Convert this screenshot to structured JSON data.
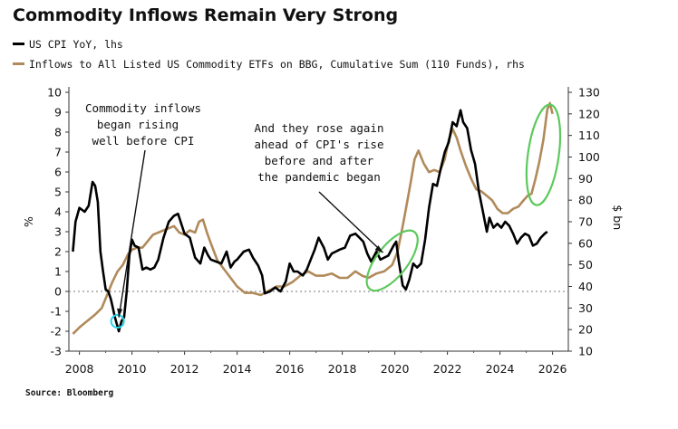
{
  "chart_data": {
    "type": "line",
    "title": "Commodity Inflows Remain Very Strong",
    "legend": [
      "US CPI YoY, lhs",
      "Inflows to All Listed US Commodity ETFs on BBG, Cumulative Sum (110 Funds), rhs"
    ],
    "xlim": [
      2007.6,
      2026.6
    ],
    "ylim_left": [
      -3,
      10
    ],
    "ylim_right": [
      10,
      130
    ],
    "x_ticks": [
      "2008",
      "2010",
      "2012",
      "2014",
      "2016",
      "2018",
      "2020",
      "2022",
      "2024",
      "2026"
    ],
    "y_left_ticks": [
      "-3",
      "-2",
      "-1",
      "0",
      "1",
      "2",
      "3",
      "4",
      "5",
      "6",
      "7",
      "8",
      "9",
      "10"
    ],
    "y_right_ticks": [
      "10",
      "20",
      "30",
      "40",
      "50",
      "60",
      "70",
      "80",
      "90",
      "100",
      "110",
      "120",
      "130"
    ],
    "ylabel_left": "%",
    "ylabel_right": "$ bn",
    "series": [
      {
        "name": "US CPI YoY, lhs",
        "axis": "left",
        "color": "#000000",
        "points": [
          [
            2007.75,
            2.0
          ],
          [
            2007.85,
            3.5
          ],
          [
            2008.0,
            4.2
          ],
          [
            2008.2,
            4.0
          ],
          [
            2008.35,
            4.3
          ],
          [
            2008.5,
            5.5
          ],
          [
            2008.6,
            5.3
          ],
          [
            2008.7,
            4.5
          ],
          [
            2008.8,
            2.0
          ],
          [
            2008.9,
            1.0
          ],
          [
            2009.0,
            0.1
          ],
          [
            2009.1,
            0.0
          ],
          [
            2009.2,
            -0.4
          ],
          [
            2009.35,
            -1.3
          ],
          [
            2009.5,
            -2.0
          ],
          [
            2009.6,
            -1.5
          ],
          [
            2009.7,
            -1.3
          ],
          [
            2009.8,
            0.0
          ],
          [
            2009.9,
            1.8
          ],
          [
            2010.0,
            2.6
          ],
          [
            2010.1,
            2.3
          ],
          [
            2010.25,
            2.2
          ],
          [
            2010.4,
            1.1
          ],
          [
            2010.55,
            1.2
          ],
          [
            2010.7,
            1.1
          ],
          [
            2010.85,
            1.2
          ],
          [
            2011.0,
            1.6
          ],
          [
            2011.2,
            2.7
          ],
          [
            2011.4,
            3.5
          ],
          [
            2011.6,
            3.8
          ],
          [
            2011.75,
            3.9
          ],
          [
            2011.9,
            3.3
          ],
          [
            2012.0,
            2.9
          ],
          [
            2012.2,
            2.7
          ],
          [
            2012.4,
            1.7
          ],
          [
            2012.6,
            1.4
          ],
          [
            2012.75,
            2.2
          ],
          [
            2012.9,
            1.8
          ],
          [
            2013.0,
            1.6
          ],
          [
            2013.2,
            1.5
          ],
          [
            2013.4,
            1.4
          ],
          [
            2013.6,
            2.0
          ],
          [
            2013.75,
            1.2
          ],
          [
            2013.9,
            1.5
          ],
          [
            2014.0,
            1.6
          ],
          [
            2014.25,
            2.0
          ],
          [
            2014.45,
            2.1
          ],
          [
            2014.6,
            1.7
          ],
          [
            2014.8,
            1.3
          ],
          [
            2014.95,
            0.8
          ],
          [
            2015.05,
            -0.1
          ],
          [
            2015.25,
            0.0
          ],
          [
            2015.45,
            0.2
          ],
          [
            2015.65,
            0.0
          ],
          [
            2015.85,
            0.5
          ],
          [
            2016.0,
            1.4
          ],
          [
            2016.15,
            1.0
          ],
          [
            2016.3,
            1.0
          ],
          [
            2016.5,
            0.8
          ],
          [
            2016.65,
            1.1
          ],
          [
            2016.8,
            1.6
          ],
          [
            2016.95,
            2.1
          ],
          [
            2017.1,
            2.7
          ],
          [
            2017.3,
            2.2
          ],
          [
            2017.45,
            1.6
          ],
          [
            2017.6,
            1.9
          ],
          [
            2017.75,
            2.0
          ],
          [
            2017.9,
            2.1
          ],
          [
            2018.1,
            2.2
          ],
          [
            2018.3,
            2.8
          ],
          [
            2018.5,
            2.9
          ],
          [
            2018.65,
            2.7
          ],
          [
            2018.8,
            2.5
          ],
          [
            2018.95,
            1.9
          ],
          [
            2019.1,
            1.5
          ],
          [
            2019.3,
            2.0
          ],
          [
            2019.45,
            1.6
          ],
          [
            2019.6,
            1.7
          ],
          [
            2019.75,
            1.8
          ],
          [
            2019.95,
            2.3
          ],
          [
            2020.05,
            2.5
          ],
          [
            2020.15,
            1.5
          ],
          [
            2020.3,
            0.3
          ],
          [
            2020.42,
            0.1
          ],
          [
            2020.55,
            0.6
          ],
          [
            2020.7,
            1.4
          ],
          [
            2020.85,
            1.2
          ],
          [
            2021.0,
            1.4
          ],
          [
            2021.15,
            2.6
          ],
          [
            2021.3,
            4.2
          ],
          [
            2021.45,
            5.4
          ],
          [
            2021.6,
            5.3
          ],
          [
            2021.75,
            6.2
          ],
          [
            2021.9,
            7.0
          ],
          [
            2022.05,
            7.5
          ],
          [
            2022.2,
            8.5
          ],
          [
            2022.35,
            8.3
          ],
          [
            2022.5,
            9.1
          ],
          [
            2022.6,
            8.5
          ],
          [
            2022.75,
            8.2
          ],
          [
            2022.9,
            7.1
          ],
          [
            2023.05,
            6.4
          ],
          [
            2023.2,
            5.0
          ],
          [
            2023.35,
            4.0
          ],
          [
            2023.5,
            3.0
          ],
          [
            2023.6,
            3.7
          ],
          [
            2023.75,
            3.2
          ],
          [
            2023.9,
            3.4
          ],
          [
            2024.05,
            3.2
          ],
          [
            2024.2,
            3.5
          ],
          [
            2024.35,
            3.3
          ],
          [
            2024.5,
            2.9
          ],
          [
            2024.65,
            2.4
          ],
          [
            2024.8,
            2.7
          ],
          [
            2024.95,
            2.9
          ],
          [
            2025.1,
            2.8
          ],
          [
            2025.25,
            2.3
          ],
          [
            2025.4,
            2.4
          ],
          [
            2025.55,
            2.7
          ],
          [
            2025.7,
            2.9
          ],
          [
            2025.8,
            3.0
          ]
        ]
      },
      {
        "name": "Inflows to All Listed US Commodity ETFs on BBG, Cumulative Sum (110 Funds), rhs",
        "axis": "right",
        "color": "#b08a5a",
        "points": [
          [
            2007.75,
            18
          ],
          [
            2008.0,
            21
          ],
          [
            2008.3,
            24
          ],
          [
            2008.6,
            27
          ],
          [
            2008.85,
            30
          ],
          [
            2009.05,
            36
          ],
          [
            2009.25,
            42
          ],
          [
            2009.45,
            47
          ],
          [
            2009.65,
            50
          ],
          [
            2009.85,
            55
          ],
          [
            2010.0,
            57
          ],
          [
            2010.2,
            58
          ],
          [
            2010.4,
            58
          ],
          [
            2010.6,
            61
          ],
          [
            2010.8,
            64
          ],
          [
            2011.0,
            65
          ],
          [
            2011.2,
            66
          ],
          [
            2011.4,
            67
          ],
          [
            2011.6,
            68
          ],
          [
            2011.8,
            65
          ],
          [
            2012.0,
            64
          ],
          [
            2012.2,
            66
          ],
          [
            2012.4,
            65
          ],
          [
            2012.55,
            70
          ],
          [
            2012.7,
            71
          ],
          [
            2012.85,
            65
          ],
          [
            2013.0,
            60
          ],
          [
            2013.25,
            52
          ],
          [
            2013.5,
            48
          ],
          [
            2013.75,
            44
          ],
          [
            2014.0,
            40
          ],
          [
            2014.3,
            37
          ],
          [
            2014.6,
            37
          ],
          [
            2014.9,
            36
          ],
          [
            2015.2,
            38
          ],
          [
            2015.5,
            40
          ],
          [
            2015.8,
            40
          ],
          [
            2016.1,
            42
          ],
          [
            2016.4,
            45
          ],
          [
            2016.7,
            47
          ],
          [
            2017.0,
            45
          ],
          [
            2017.3,
            45
          ],
          [
            2017.6,
            46
          ],
          [
            2017.9,
            44
          ],
          [
            2018.2,
            44
          ],
          [
            2018.5,
            47
          ],
          [
            2018.75,
            45
          ],
          [
            2019.0,
            44
          ],
          [
            2019.3,
            46
          ],
          [
            2019.6,
            47
          ],
          [
            2019.9,
            50
          ],
          [
            2020.1,
            56
          ],
          [
            2020.3,
            68
          ],
          [
            2020.45,
            78
          ],
          [
            2020.6,
            88
          ],
          [
            2020.75,
            99
          ],
          [
            2020.9,
            103
          ],
          [
            2021.1,
            97
          ],
          [
            2021.3,
            93
          ],
          [
            2021.5,
            94
          ],
          [
            2021.7,
            93
          ],
          [
            2021.9,
            99
          ],
          [
            2022.05,
            108
          ],
          [
            2022.2,
            113
          ],
          [
            2022.35,
            109
          ],
          [
            2022.5,
            103
          ],
          [
            2022.7,
            96
          ],
          [
            2022.9,
            90
          ],
          [
            2023.1,
            85
          ],
          [
            2023.3,
            84
          ],
          [
            2023.5,
            82
          ],
          [
            2023.7,
            80
          ],
          [
            2023.9,
            76
          ],
          [
            2024.1,
            74
          ],
          [
            2024.3,
            74
          ],
          [
            2024.5,
            76
          ],
          [
            2024.7,
            77
          ],
          [
            2024.9,
            80
          ],
          [
            2025.05,
            82
          ],
          [
            2025.2,
            83
          ],
          [
            2025.35,
            90
          ],
          [
            2025.5,
            98
          ],
          [
            2025.65,
            108
          ],
          [
            2025.8,
            122
          ],
          [
            2025.9,
            125
          ],
          [
            2026.0,
            120
          ]
        ]
      }
    ],
    "annotations": [
      {
        "lines": [
          "Commodity inflows",
          "began rising",
          "well before CPI"
        ]
      },
      {
        "lines": [
          "And they rose again",
          "ahead of CPI's rise",
          "before and after",
          "the pandemic began"
        ]
      }
    ],
    "source": "Source: Bloomberg"
  }
}
